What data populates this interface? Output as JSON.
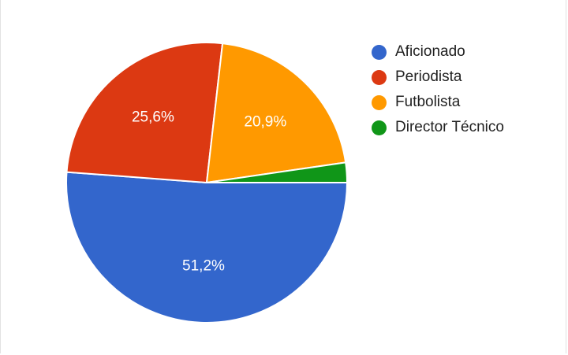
{
  "chart_data": {
    "type": "pie",
    "title": "",
    "slices": [
      {
        "label": "Aficionado",
        "value": 51.2,
        "display": "51,2%",
        "color": "#3366cc",
        "show_label": true
      },
      {
        "label": "Periodista",
        "value": 25.6,
        "display": "25,6%",
        "color": "#dc3912",
        "show_label": true
      },
      {
        "label": "Futbolista",
        "value": 20.9,
        "display": "20,9%",
        "color": "#ff9900",
        "show_label": true
      },
      {
        "label": "Director Técnico",
        "value": 2.3,
        "display": "",
        "color": "#109618",
        "show_label": false
      }
    ],
    "legend_position": "right"
  }
}
